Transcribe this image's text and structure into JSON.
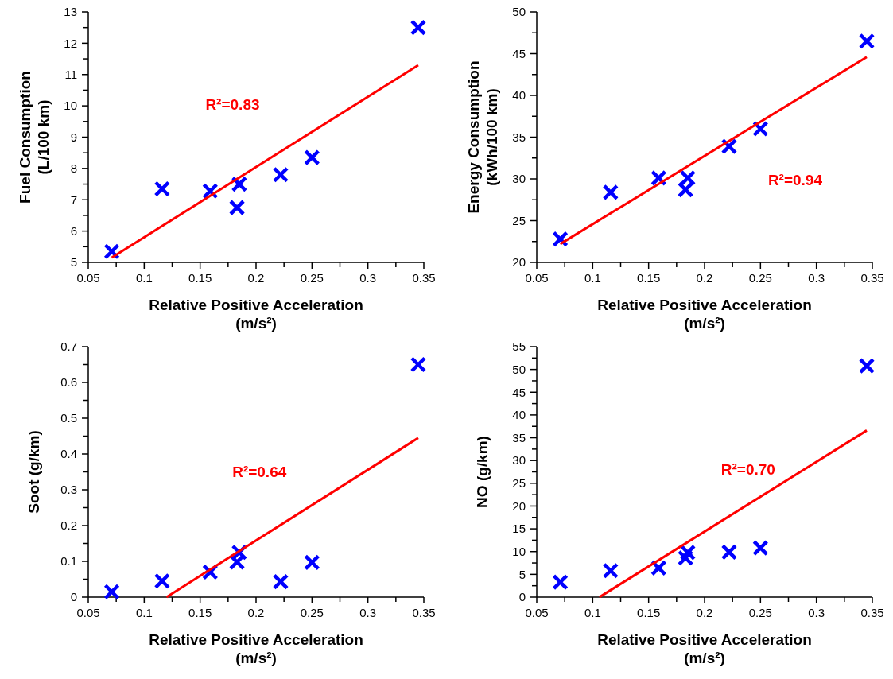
{
  "chart_data": [
    {
      "type": "scatter",
      "xlabel": "Relative Positive Acceleration\n(m/s²)",
      "ylabel": "Fuel Consumption\n(L/100 km)",
      "annotations": [
        "R²=0.83"
      ],
      "xlim": [
        0.05,
        0.35
      ],
      "xticks": [
        0.05,
        {
          "value": 0.075,
          "label": null
        },
        0.1,
        {
          "value": 0.125,
          "label": null
        },
        0.15,
        {
          "value": 0.175,
          "label": null
        },
        0.2,
        {
          "value": 0.225,
          "label": null
        },
        0.25,
        {
          "value": 0.275,
          "label": null
        },
        0.3,
        {
          "value": 0.325,
          "label": null
        },
        0.35
      ],
      "ylim": [
        5,
        13
      ],
      "yticks": [
        5,
        {
          "value": 5.5,
          "label": null
        },
        6,
        {
          "value": 6.5,
          "label": null
        },
        7,
        {
          "value": 7.5,
          "label": null
        },
        8,
        {
          "value": 8.5,
          "label": null
        },
        9,
        {
          "value": 9.5,
          "label": null
        },
        10,
        {
          "value": 10.5,
          "label": null
        },
        11,
        {
          "value": 11.5,
          "label": null
        },
        12,
        {
          "value": 12.5,
          "label": null
        },
        13
      ],
      "series": [
        {
          "marker": "cross",
          "color": "#0000ff",
          "x": [
            0.071,
            0.116,
            0.159,
            0.183,
            0.185,
            0.222,
            0.25,
            0.345
          ],
          "values": [
            5.35,
            7.35,
            7.28,
            6.75,
            7.5,
            7.8,
            8.35,
            12.5
          ]
        },
        {
          "type": "line",
          "color": "#ff0000",
          "x": [
            0.071,
            0.345
          ],
          "values": [
            5.15,
            11.3
          ]
        }
      ]
    },
    {
      "type": "scatter",
      "xlabel": "Relative Positive Acceleration\n(m/s²)",
      "ylabel": "Energy Consumption\n(kWh/100 km)",
      "annotations": [
        "R²=0.94"
      ],
      "xlim": [
        0.05,
        0.35
      ],
      "xticks": [
        0.05,
        {
          "value": 0.075,
          "label": null
        },
        0.1,
        {
          "value": 0.125,
          "label": null
        },
        0.15,
        {
          "value": 0.175,
          "label": null
        },
        0.2,
        {
          "value": 0.225,
          "label": null
        },
        0.25,
        {
          "value": 0.275,
          "label": null
        },
        0.3,
        {
          "value": 0.325,
          "label": null
        },
        0.35
      ],
      "ylim": [
        20,
        50
      ],
      "yticks": [
        20,
        {
          "value": 22.5,
          "label": null
        },
        25,
        {
          "value": 27.5,
          "label": null
        },
        30,
        {
          "value": 32.5,
          "label": null
        },
        35,
        {
          "value": 37.5,
          "label": null
        },
        40,
        {
          "value": 42.5,
          "label": null
        },
        45,
        {
          "value": 47.5,
          "label": null
        },
        50
      ],
      "series": [
        {
          "marker": "cross",
          "color": "#0000ff",
          "x": [
            0.071,
            0.116,
            0.159,
            0.183,
            0.185,
            0.222,
            0.25,
            0.345
          ],
          "values": [
            22.8,
            28.4,
            30.1,
            28.7,
            30.1,
            33.9,
            36.0,
            46.5
          ]
        },
        {
          "type": "line",
          "color": "#ff0000",
          "x": [
            0.071,
            0.345
          ],
          "values": [
            22.2,
            44.6
          ]
        }
      ]
    },
    {
      "type": "scatter",
      "xlabel": "Relative Positive Acceleration\n(m/s²)",
      "ylabel": "Soot (g/km)",
      "annotations": [
        "R²=0.64"
      ],
      "xlim": [
        0.05,
        0.35
      ],
      "xticks": [
        0.05,
        {
          "value": 0.075,
          "label": null
        },
        0.1,
        {
          "value": 0.125,
          "label": null
        },
        0.15,
        {
          "value": 0.175,
          "label": null
        },
        0.2,
        {
          "value": 0.225,
          "label": null
        },
        0.25,
        {
          "value": 0.275,
          "label": null
        },
        0.3,
        {
          "value": 0.325,
          "label": null
        },
        0.35
      ],
      "ylim": [
        0,
        0.7
      ],
      "yticks": [
        0,
        {
          "value": 0.05,
          "label": null
        },
        0.1,
        {
          "value": 0.15,
          "label": null
        },
        0.2,
        {
          "value": 0.25,
          "label": null
        },
        0.3,
        {
          "value": 0.35,
          "label": null
        },
        0.4,
        {
          "value": 0.45,
          "label": null
        },
        0.5,
        {
          "value": 0.55,
          "label": null
        },
        0.6,
        {
          "value": 0.65,
          "label": null
        },
        0.7
      ],
      "series": [
        {
          "marker": "cross",
          "color": "#0000ff",
          "x": [
            0.071,
            0.116,
            0.159,
            0.183,
            0.185,
            0.222,
            0.25,
            0.345
          ],
          "values": [
            0.015,
            0.045,
            0.07,
            0.098,
            0.125,
            0.043,
            0.097,
            0.65
          ]
        },
        {
          "type": "line",
          "color": "#ff0000",
          "x": [
            0.12,
            0.345
          ],
          "values": [
            0,
            0.445
          ]
        }
      ]
    },
    {
      "type": "scatter",
      "xlabel": "Relative Positive Acceleration\n(m/s²)",
      "ylabel": "NO (g/km)",
      "annotations": [
        "R²=0.70"
      ],
      "xlim": [
        0.05,
        0.35
      ],
      "xticks": [
        0.05,
        {
          "value": 0.075,
          "label": null
        },
        0.1,
        {
          "value": 0.125,
          "label": null
        },
        0.15,
        {
          "value": 0.175,
          "label": null
        },
        0.2,
        {
          "value": 0.225,
          "label": null
        },
        0.25,
        {
          "value": 0.275,
          "label": null
        },
        0.3,
        {
          "value": 0.325,
          "label": null
        },
        0.35
      ],
      "ylim": [
        0,
        55
      ],
      "yticks": [
        0,
        {
          "value": 2.5,
          "label": null
        },
        5,
        {
          "value": 7.5,
          "label": null
        },
        10,
        {
          "value": 12.5,
          "label": null
        },
        15,
        {
          "value": 17.5,
          "label": null
        },
        20,
        {
          "value": 22.5,
          "label": null
        },
        25,
        {
          "value": 27.5,
          "label": null
        },
        30,
        {
          "value": 32.5,
          "label": null
        },
        35,
        {
          "value": 37.5,
          "label": null
        },
        40,
        {
          "value": 42.5,
          "label": null
        },
        45,
        {
          "value": 47.5,
          "label": null
        },
        50,
        {
          "value": 52.5,
          "label": null
        },
        55
      ],
      "series": [
        {
          "marker": "cross",
          "color": "#0000ff",
          "x": [
            0.071,
            0.116,
            0.159,
            0.183,
            0.185,
            0.222,
            0.25,
            0.345
          ],
          "values": [
            3.3,
            5.8,
            6.4,
            8.6,
            9.8,
            9.9,
            10.8,
            50.8
          ]
        },
        {
          "type": "line",
          "color": "#ff0000",
          "x": [
            0.106,
            0.345
          ],
          "values": [
            0,
            36.6
          ]
        }
      ]
    }
  ]
}
